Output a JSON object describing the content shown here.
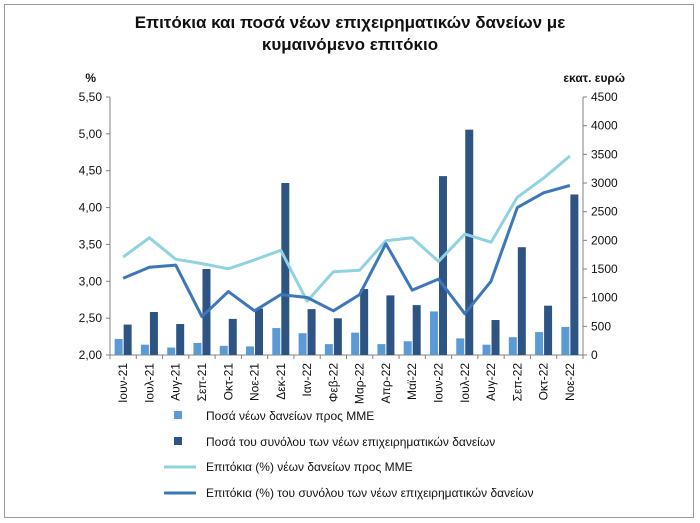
{
  "chart_data": {
    "type": "bar+line",
    "title_lines": [
      "Επιτόκια και ποσά νέων επιχειρηματικών δανείων με",
      "κυμαινόμενο επιτόκιο"
    ],
    "ylabel_left": "%",
    "ylabel_right": "εκατ. ευρώ",
    "ylim_left": [
      2.0,
      5.5
    ],
    "ylim_right": [
      0,
      4500
    ],
    "yticks_left": [
      "2,00",
      "2,50",
      "3,00",
      "3,50",
      "4,00",
      "4,50",
      "5,00",
      "5,50"
    ],
    "yticks_right": [
      "0",
      "500",
      "1000",
      "1500",
      "2000",
      "2500",
      "3000",
      "3500",
      "4000",
      "4500"
    ],
    "categories": [
      "Ιουν-21",
      "Ιουλ-21",
      "Αυγ-21",
      "Σεπ-21",
      "Οκτ-21",
      "Νοε-21",
      "Δεκ-21",
      "Ιαν-22",
      "Φεβ-22",
      "Μαρ-22",
      "Απρ-22",
      "Μαϊ-22",
      "Ιουν-22",
      "Ιουλ-22",
      "Αυγ-22",
      "Σεπ-22",
      "Οκτ-22",
      "Νοε-22"
    ],
    "series": [
      {
        "name": "Ποσά νέων δανείων προς ΜΜΕ",
        "kind": "bar",
        "axis": "right",
        "color": "#5b9bd5",
        "values": [
          280,
          180,
          130,
          210,
          160,
          150,
          470,
          380,
          190,
          390,
          190,
          240,
          760,
          290,
          180,
          310,
          400,
          490
        ]
      },
      {
        "name": "Ποσά του συνόλου των νέων επιχειρηματικών δανείων",
        "kind": "bar",
        "axis": "right",
        "color": "#2e5484",
        "values": [
          530,
          750,
          540,
          1500,
          630,
          810,
          3000,
          800,
          640,
          1150,
          1040,
          870,
          3120,
          3930,
          610,
          1880,
          860,
          2800
        ]
      },
      {
        "name": "Επιτόκια (%) νέων δανείων προς ΜΜΕ",
        "kind": "line",
        "axis": "left",
        "color": "#8fd3e0",
        "values": [
          3.33,
          3.59,
          3.3,
          3.24,
          3.17,
          3.29,
          3.42,
          2.73,
          3.13,
          3.15,
          3.55,
          3.59,
          3.27,
          3.64,
          3.53,
          4.14,
          4.4,
          4.7
        ]
      },
      {
        "name": "Επιτόκια (%) του συνόλου των νέων επιχειρηματικών δανείων",
        "kind": "line",
        "axis": "left",
        "color": "#3c77bb",
        "values": [
          3.04,
          3.19,
          3.22,
          2.52,
          2.86,
          2.6,
          2.82,
          2.78,
          2.6,
          2.82,
          3.51,
          2.88,
          3.03,
          2.56,
          3.0,
          4.0,
          4.2,
          4.3
        ]
      }
    ],
    "grid": false,
    "legend_position": "bottom"
  }
}
